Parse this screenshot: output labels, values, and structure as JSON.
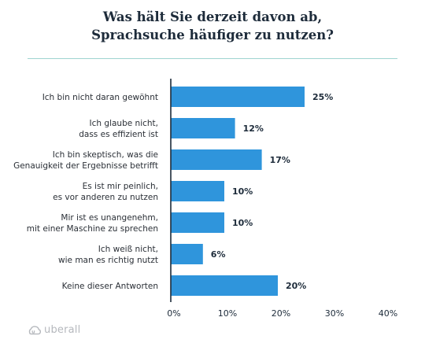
{
  "title_lines": [
    "Was hält Sie derzeit davon ab,",
    "Sprachsuche häufiger zu nutzen?"
  ],
  "brand": "uberall",
  "colors": {
    "bar": "#2f95dc",
    "axis": "#1d2b3a",
    "rule": "#9fd4d0"
  },
  "chart_data": {
    "type": "bar",
    "orientation": "horizontal",
    "title": "Was hält Sie derzeit davon ab, Sprachsuche häufiger zu nutzen?",
    "categories": [
      [
        "Ich bin nicht daran gewöhnt"
      ],
      [
        "Ich glaube nicht,",
        "dass es effizient ist"
      ],
      [
        "Ich bin skeptisch, was die",
        "Genauigkeit der Ergebnisse betrifft"
      ],
      [
        "Es ist mir peinlich,",
        "es vor anderen zu nutzen"
      ],
      [
        "Mir ist es unangenehm,",
        "mit einer Maschine zu sprechen"
      ],
      [
        "Ich weiß nicht,",
        "wie man es richtig nutzt"
      ],
      [
        "Keine dieser Antworten"
      ]
    ],
    "values": [
      25,
      12,
      17,
      10,
      10,
      6,
      20
    ],
    "value_labels": [
      "25%",
      "12%",
      "17%",
      "10%",
      "10%",
      "6%",
      "20%"
    ],
    "xlim": [
      0,
      40
    ],
    "x_ticks": [
      0,
      10,
      20,
      30,
      40
    ],
    "x_tick_labels": [
      "0%",
      "10%",
      "20%",
      "30%",
      "40%"
    ],
    "grid": false,
    "legend": "none"
  }
}
